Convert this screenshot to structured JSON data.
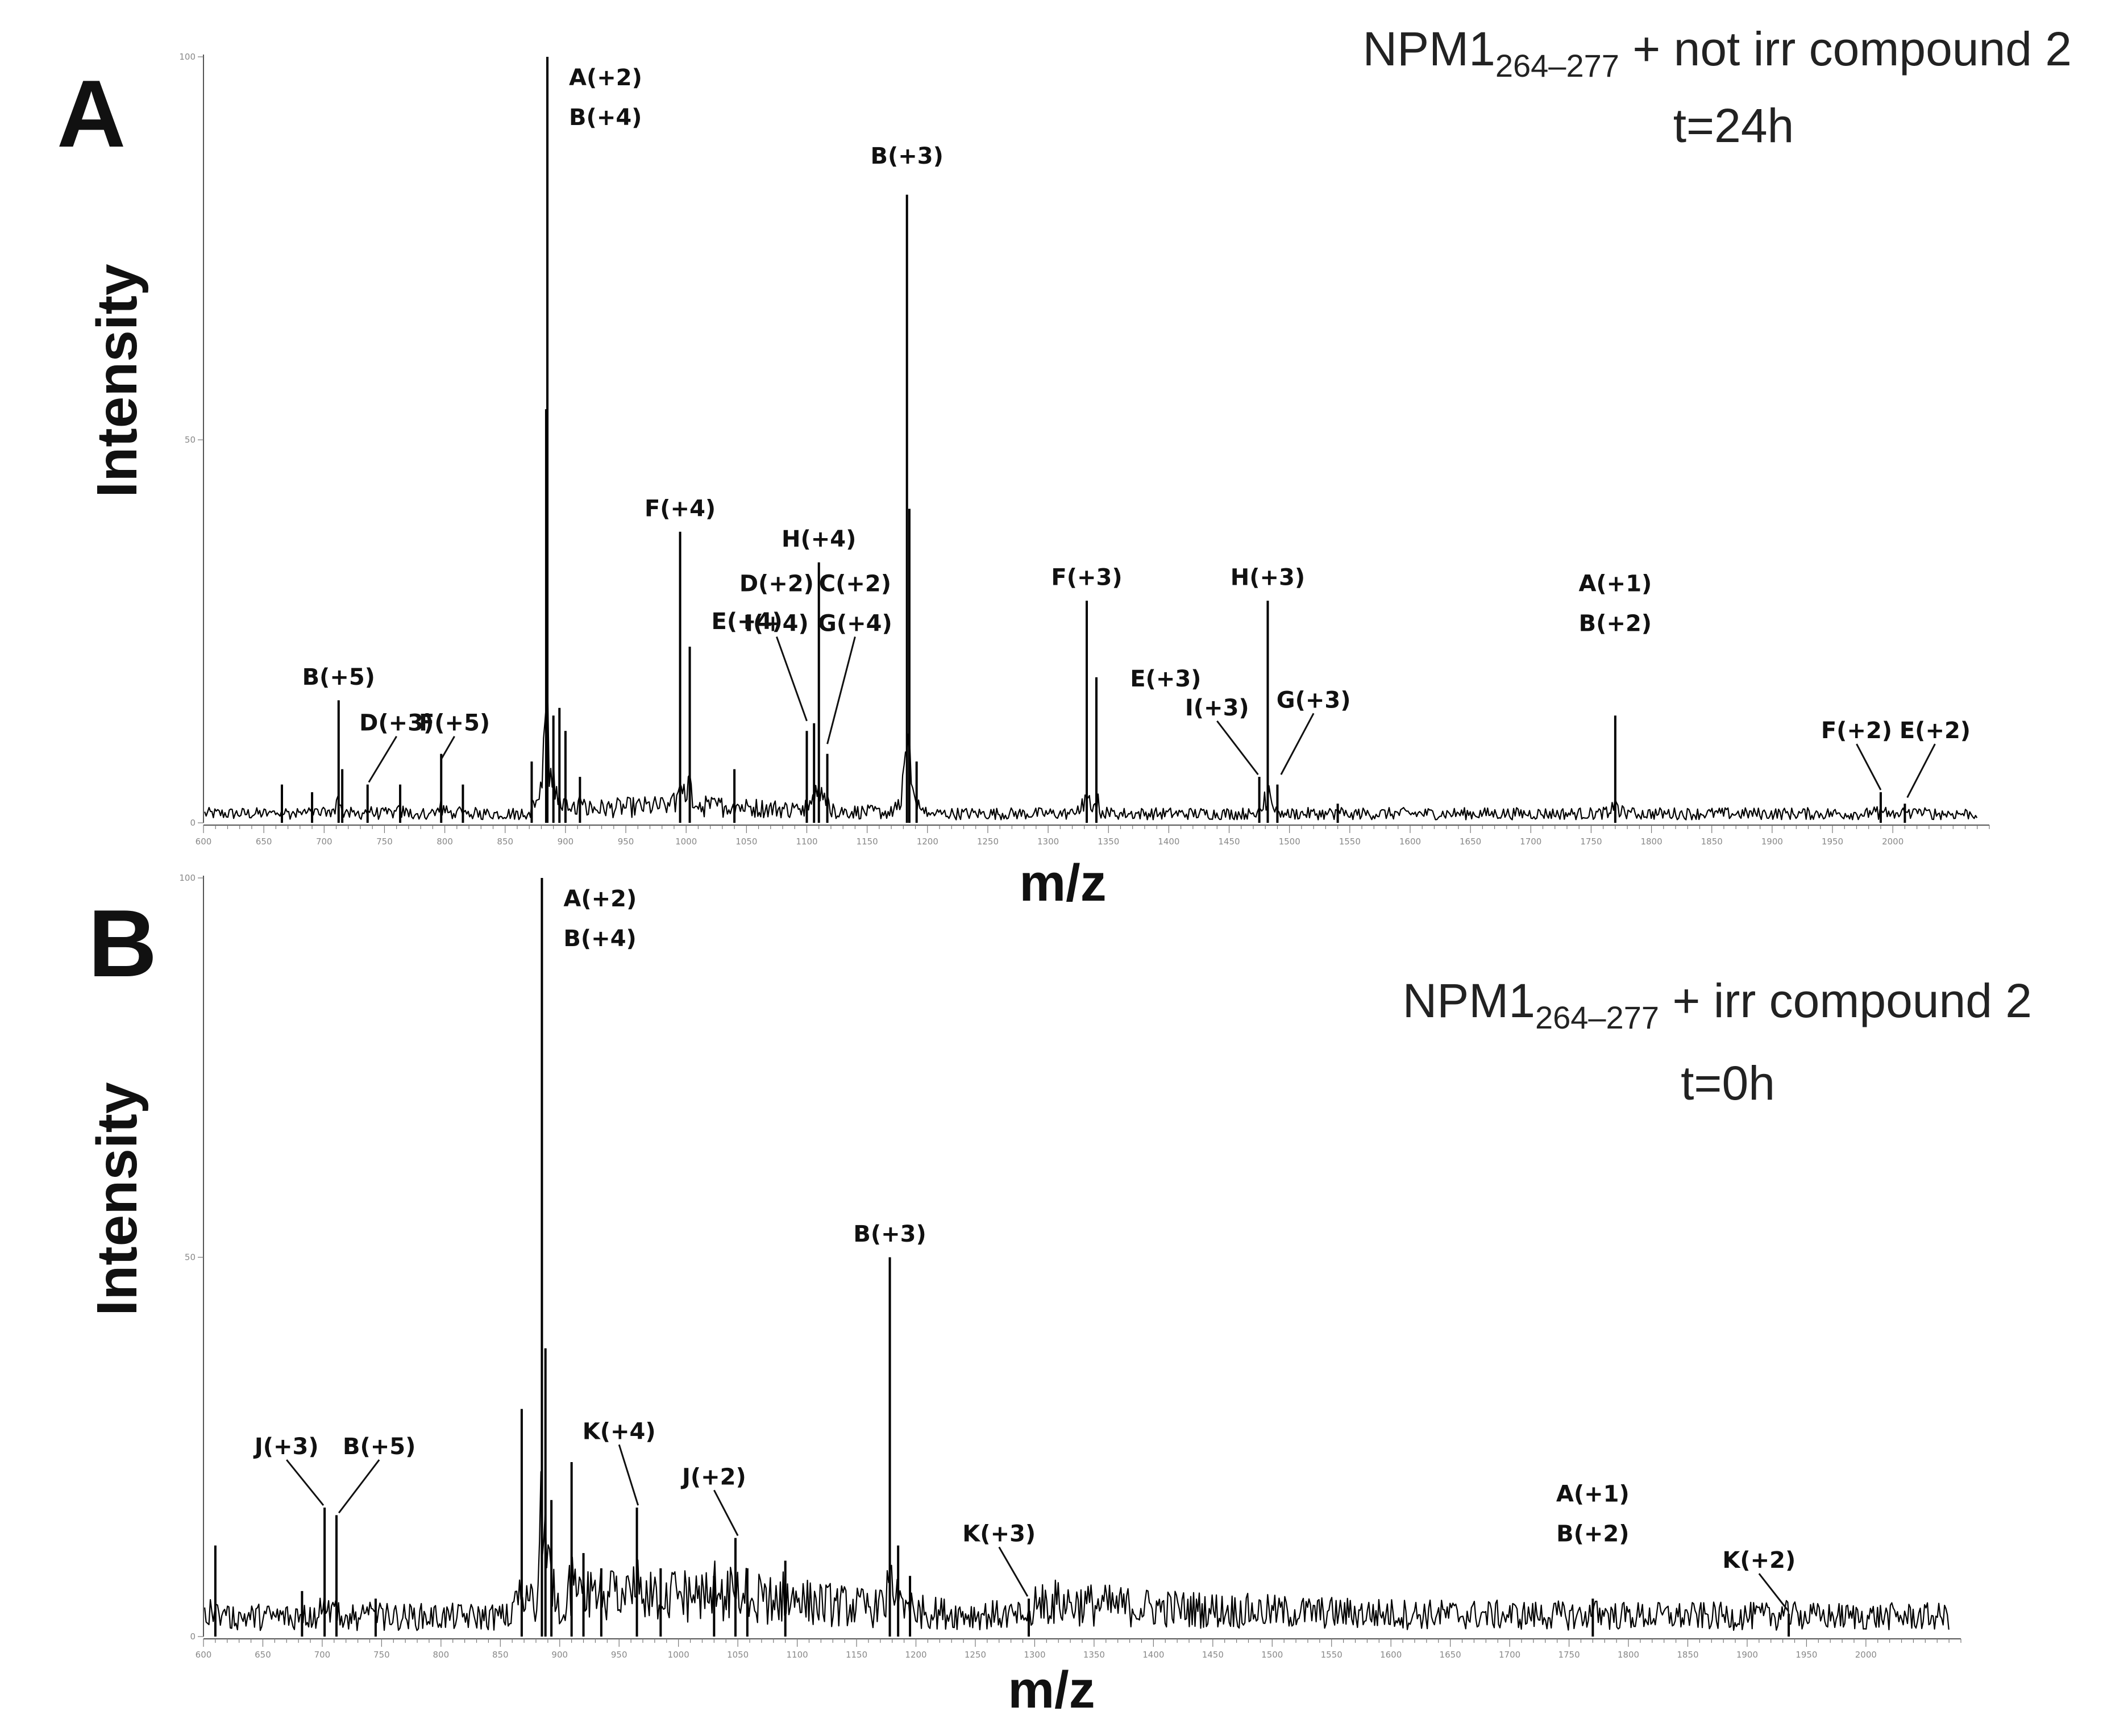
{
  "chart_data": [
    {
      "type": "line",
      "panel": "A",
      "condition_main": "NPM1",
      "condition_sub": "264–277",
      "condition_rest": " + not irr compound 2",
      "time": "t=24h",
      "ylabel": "Intensity",
      "xlabel": "m/z",
      "xlim": [
        600,
        2080
      ],
      "ylim": [
        0,
        100
      ],
      "x_ticks": [
        600,
        650,
        700,
        750,
        800,
        850,
        900,
        950,
        1000,
        1050,
        1100,
        1150,
        1200,
        1250,
        1300,
        1350,
        1400,
        1450,
        1500,
        1550,
        1600,
        1650,
        1700,
        1750,
        1800,
        1850,
        1900,
        1950,
        2000
      ],
      "y_ticks": [
        0,
        50,
        100
      ],
      "baseline": 1.0,
      "peaks": [
        {
          "x": 885,
          "y": 100
        },
        {
          "x": 884,
          "y": 54
        },
        {
          "x": 890,
          "y": 14
        },
        {
          "x": 895,
          "y": 15
        },
        {
          "x": 900,
          "y": 12
        },
        {
          "x": 912,
          "y": 6
        },
        {
          "x": 872,
          "y": 8
        },
        {
          "x": 815,
          "y": 5
        },
        {
          "x": 797,
          "y": 9
        },
        {
          "x": 763,
          "y": 5
        },
        {
          "x": 712,
          "y": 16
        },
        {
          "x": 715,
          "y": 7
        },
        {
          "x": 736,
          "y": 5
        },
        {
          "x": 665,
          "y": 5
        },
        {
          "x": 690,
          "y": 4
        },
        {
          "x": 995,
          "y": 38
        },
        {
          "x": 1003,
          "y": 23
        },
        {
          "x": 1040,
          "y": 7
        },
        {
          "x": 1100,
          "y": 12
        },
        {
          "x": 1106,
          "y": 13
        },
        {
          "x": 1110,
          "y": 34
        },
        {
          "x": 1117,
          "y": 9
        },
        {
          "x": 1183,
          "y": 82
        },
        {
          "x": 1185,
          "y": 41
        },
        {
          "x": 1191,
          "y": 8
        },
        {
          "x": 1332,
          "y": 29
        },
        {
          "x": 1340,
          "y": 19
        },
        {
          "x": 1475,
          "y": 6
        },
        {
          "x": 1482,
          "y": 29
        },
        {
          "x": 1490,
          "y": 5
        },
        {
          "x": 1540,
          "y": 2.5
        },
        {
          "x": 1770,
          "y": 14
        },
        {
          "x": 1990,
          "y": 4
        },
        {
          "x": 2010,
          "y": 2.5
        }
      ],
      "labels": [
        {
          "text": [
            "A(+2)",
            "B(+4)"
          ],
          "x": 885,
          "y": 100,
          "anchor": "right"
        },
        {
          "text": [
            "B(+3)"
          ],
          "x": 1183,
          "y": 85
        },
        {
          "text": [
            "F(+4)"
          ],
          "x": 995,
          "y": 39
        },
        {
          "text": [
            "E(+4)"
          ],
          "x": 1003,
          "y": 29,
          "anchor": "right"
        },
        {
          "text": [
            "H(+4)"
          ],
          "x": 1110,
          "y": 35
        },
        {
          "text": [
            "D(+2)",
            "I(+4)"
          ],
          "x": 1075,
          "y": 24,
          "pointer": [
            1100,
            13
          ]
        },
        {
          "text": [
            "C(+2)",
            "G(+4)"
          ],
          "x": 1140,
          "y": 24,
          "pointer": [
            1117,
            10
          ]
        },
        {
          "text": [
            "F(+3)"
          ],
          "x": 1332,
          "y": 30
        },
        {
          "text": [
            "E(+3)"
          ],
          "x": 1350,
          "y": 21.5,
          "anchor": "right"
        },
        {
          "text": [
            "H(+3)"
          ],
          "x": 1482,
          "y": 30
        },
        {
          "text": [
            "I(+3)"
          ],
          "x": 1440,
          "y": 13,
          "pointer": [
            1474,
            6
          ]
        },
        {
          "text": [
            "G(+3)"
          ],
          "x": 1520,
          "y": 14,
          "pointer": [
            1493,
            6
          ]
        },
        {
          "text": [
            "A(+1)",
            "B(+2)"
          ],
          "x": 1770,
          "y": 24
        },
        {
          "text": [
            "F(+2)"
          ],
          "x": 1970,
          "y": 10,
          "pointer": [
            1990,
            4
          ]
        },
        {
          "text": [
            "E(+2)"
          ],
          "x": 2035,
          "y": 10,
          "pointer": [
            2012,
            3
          ]
        },
        {
          "text": [
            "B(+5)"
          ],
          "x": 712,
          "y": 17
        },
        {
          "text": [
            "D(+3)"
          ],
          "x": 760,
          "y": 11,
          "pointer": [
            737,
            5
          ]
        },
        {
          "text": [
            "F(+5)"
          ],
          "x": 808,
          "y": 11,
          "pointer": [
            797,
            8
          ]
        }
      ]
    },
    {
      "type": "line",
      "panel": "B",
      "condition_main": "NPM1",
      "condition_sub": "264–277",
      "condition_rest": " + irr compound 2",
      "time": "t=0h",
      "ylabel": "Intensity",
      "xlabel": "m/z",
      "xlim": [
        600,
        2080
      ],
      "ylim": [
        0,
        100
      ],
      "x_ticks": [
        600,
        650,
        700,
        750,
        800,
        850,
        900,
        950,
        1000,
        1050,
        1100,
        1150,
        1200,
        1250,
        1300,
        1350,
        1400,
        1450,
        1500,
        1550,
        1600,
        1650,
        1700,
        1750,
        1800,
        1850,
        1900,
        1950,
        2000
      ],
      "y_ticks": [
        0,
        50,
        100
      ],
      "baseline": 2.0,
      "peaks": [
        {
          "x": 610,
          "y": 12
        },
        {
          "x": 683,
          "y": 6
        },
        {
          "x": 702,
          "y": 17
        },
        {
          "x": 712,
          "y": 16
        },
        {
          "x": 745,
          "y": 5
        },
        {
          "x": 868,
          "y": 30
        },
        {
          "x": 885,
          "y": 100
        },
        {
          "x": 888,
          "y": 38
        },
        {
          "x": 893,
          "y": 18
        },
        {
          "x": 910,
          "y": 23
        },
        {
          "x": 920,
          "y": 11
        },
        {
          "x": 935,
          "y": 9
        },
        {
          "x": 965,
          "y": 17
        },
        {
          "x": 985,
          "y": 9
        },
        {
          "x": 1030,
          "y": 8
        },
        {
          "x": 1048,
          "y": 13
        },
        {
          "x": 1058,
          "y": 9
        },
        {
          "x": 1090,
          "y": 10
        },
        {
          "x": 1178,
          "y": 50
        },
        {
          "x": 1185,
          "y": 12
        },
        {
          "x": 1195,
          "y": 8
        },
        {
          "x": 1295,
          "y": 5
        },
        {
          "x": 1770,
          "y": 5
        },
        {
          "x": 1935,
          "y": 3
        }
      ],
      "labels": [
        {
          "text": [
            "A(+2)",
            "B(+4)"
          ],
          "x": 885,
          "y": 100,
          "anchor": "right"
        },
        {
          "text": [
            "B(+3)"
          ],
          "x": 1178,
          "y": 51
        },
        {
          "text": [
            "J(+3)"
          ],
          "x": 670,
          "y": 23,
          "pointer": [
            701,
            17
          ]
        },
        {
          "text": [
            "B(+5)"
          ],
          "x": 748,
          "y": 23,
          "pointer": [
            714,
            16
          ]
        },
        {
          "text": [
            "K(+4)"
          ],
          "x": 950,
          "y": 25,
          "pointer": [
            966,
            17
          ]
        },
        {
          "text": [
            "J(+2)"
          ],
          "x": 1030,
          "y": 19,
          "pointer": [
            1050,
            13
          ]
        },
        {
          "text": [
            "K(+3)"
          ],
          "x": 1270,
          "y": 11.5,
          "pointer": [
            1294,
            5
          ]
        },
        {
          "text": [
            "A(+1)",
            "B(+2)"
          ],
          "x": 1770,
          "y": 11.5
        },
        {
          "text": [
            "K(+2)"
          ],
          "x": 1910,
          "y": 8,
          "pointer": [
            1935,
            3
          ]
        }
      ]
    }
  ]
}
